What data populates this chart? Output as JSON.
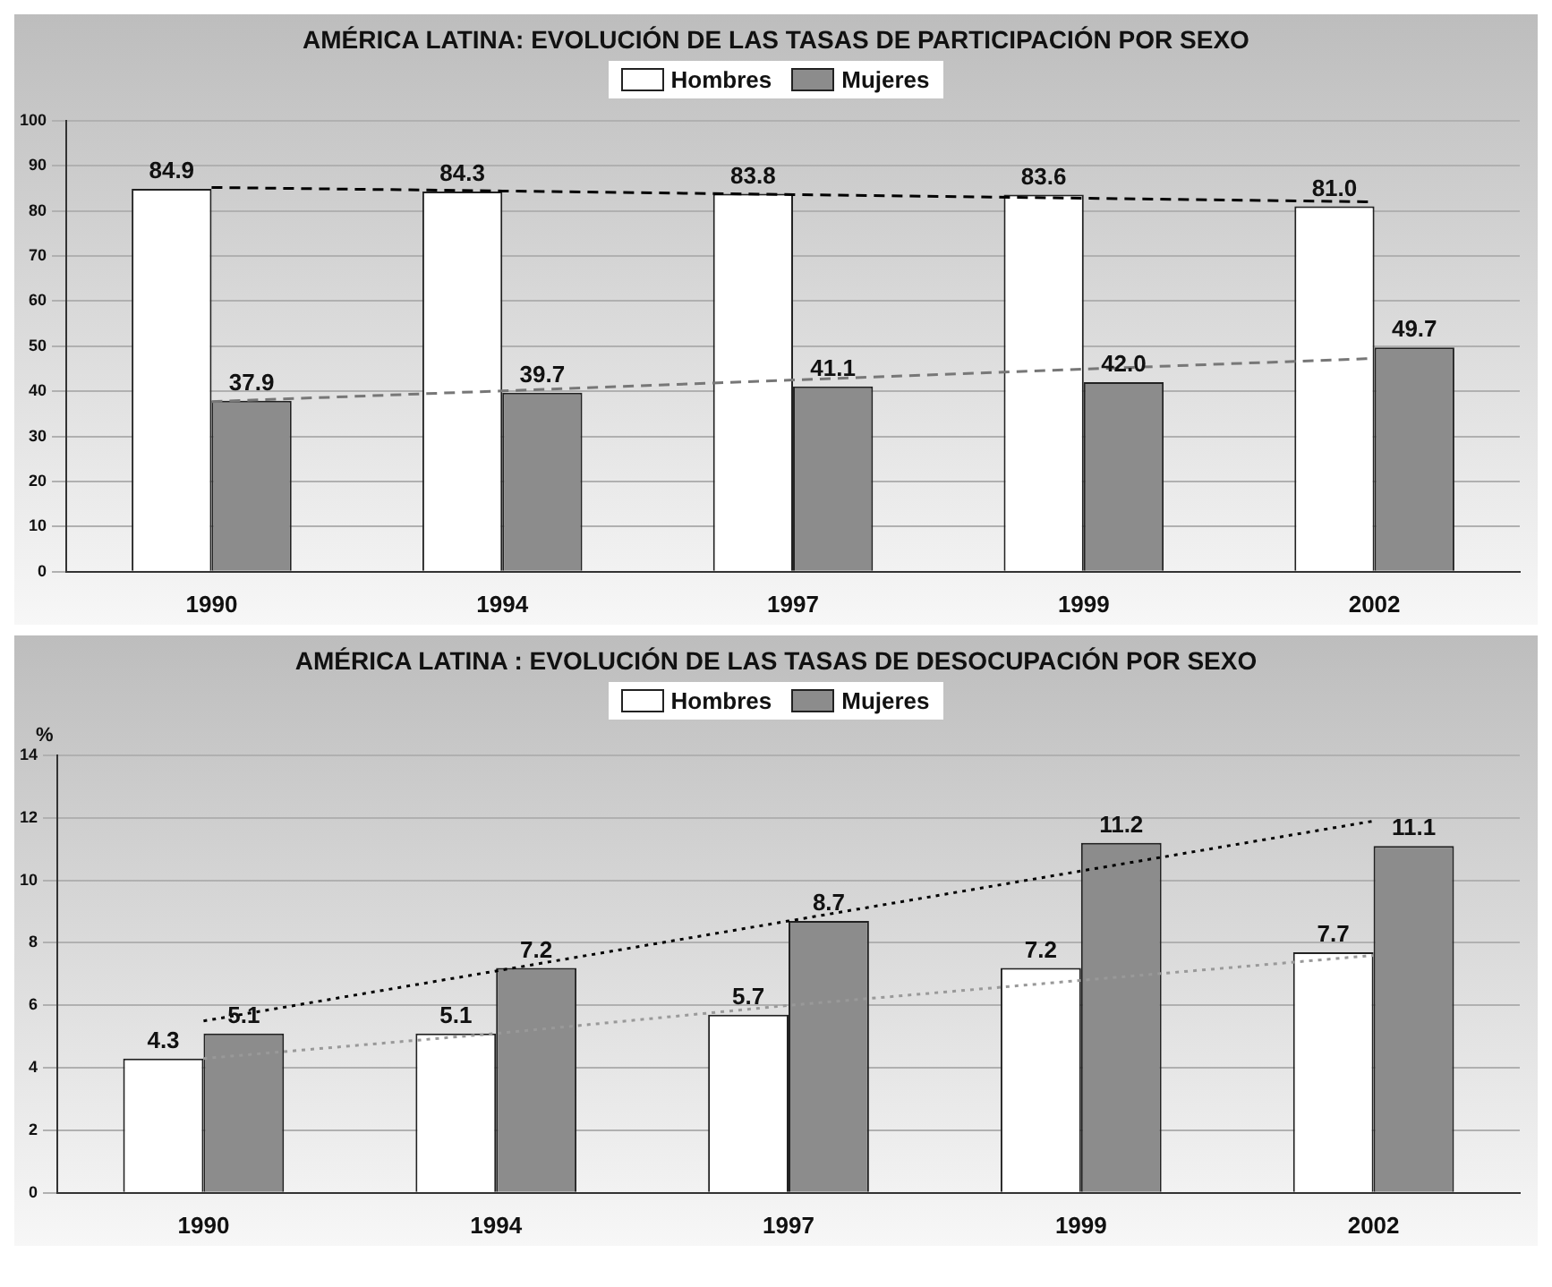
{
  "chart_data": [
    {
      "type": "bar",
      "title": "AMÉRICA LATINA: EVOLUCIÓN DE LAS TASAS DE PARTICIPACIÓN POR SEXO",
      "categories": [
        "1990",
        "1994",
        "1997",
        "1999",
        "2002"
      ],
      "ylim": [
        0,
        100
      ],
      "yticks": [
        0,
        10,
        20,
        30,
        40,
        50,
        60,
        70,
        80,
        90,
        100
      ],
      "grid": "y",
      "legend": "top",
      "marker": "none",
      "series": [
        {
          "name": "Hombres",
          "color": "#ffffff",
          "values": [
            84.9,
            84.3,
            83.8,
            83.6,
            81.0
          ],
          "value_labels": [
            "84.9",
            "84.3",
            "83.8",
            "83.6",
            "81.0"
          ]
        },
        {
          "name": "Mujeres",
          "color": "#8c8c8c",
          "values": [
            37.9,
            39.7,
            41.1,
            42.0,
            49.7
          ],
          "value_labels": [
            "37.9",
            "39.7",
            "41.1",
            "42.0",
            "49.7"
          ]
        },
        {
          "type": "line",
          "line_style": "dashed",
          "color": "#000000",
          "values": [
            85.2,
            84.4,
            83.6,
            82.8,
            82.0
          ]
        },
        {
          "type": "line",
          "line_style": "dashed",
          "color": "#777777",
          "values": [
            37.7,
            40.1,
            42.5,
            44.9,
            47.3
          ]
        }
      ]
    },
    {
      "type": "bar",
      "title": "AMÉRICA LATINA : EVOLUCIÓN DE LAS TASAS DE DESOCUPACIÓN POR SEXO",
      "ylabel": "%",
      "categories": [
        "1990",
        "1994",
        "1997",
        "1999",
        "2002"
      ],
      "ylim": [
        0,
        14
      ],
      "yticks": [
        0,
        2,
        4,
        6,
        8,
        10,
        12,
        14
      ],
      "grid": "y",
      "legend": "top",
      "marker": "none",
      "series": [
        {
          "name": "Hombres",
          "color": "#ffffff",
          "values": [
            4.3,
            5.1,
            5.7,
            7.2,
            7.7
          ],
          "value_labels": [
            "4.3",
            "5.1",
            "5.7",
            "7.2",
            "7.7"
          ]
        },
        {
          "name": "Mujeres",
          "color": "#8c8c8c",
          "values": [
            5.1,
            7.2,
            8.7,
            11.2,
            11.1
          ],
          "value_labels": [
            "5.1",
            "7.2",
            "8.7",
            "11.2",
            "11.1"
          ]
        },
        {
          "type": "line",
          "line_style": "dotted",
          "color": "#000000",
          "values": [
            5.5,
            7.1,
            8.7,
            10.3,
            11.9
          ]
        },
        {
          "type": "line",
          "line_style": "dotted",
          "color": "#999999",
          "values": [
            4.3,
            5.1,
            6.0,
            6.8,
            7.6
          ]
        }
      ]
    }
  ]
}
